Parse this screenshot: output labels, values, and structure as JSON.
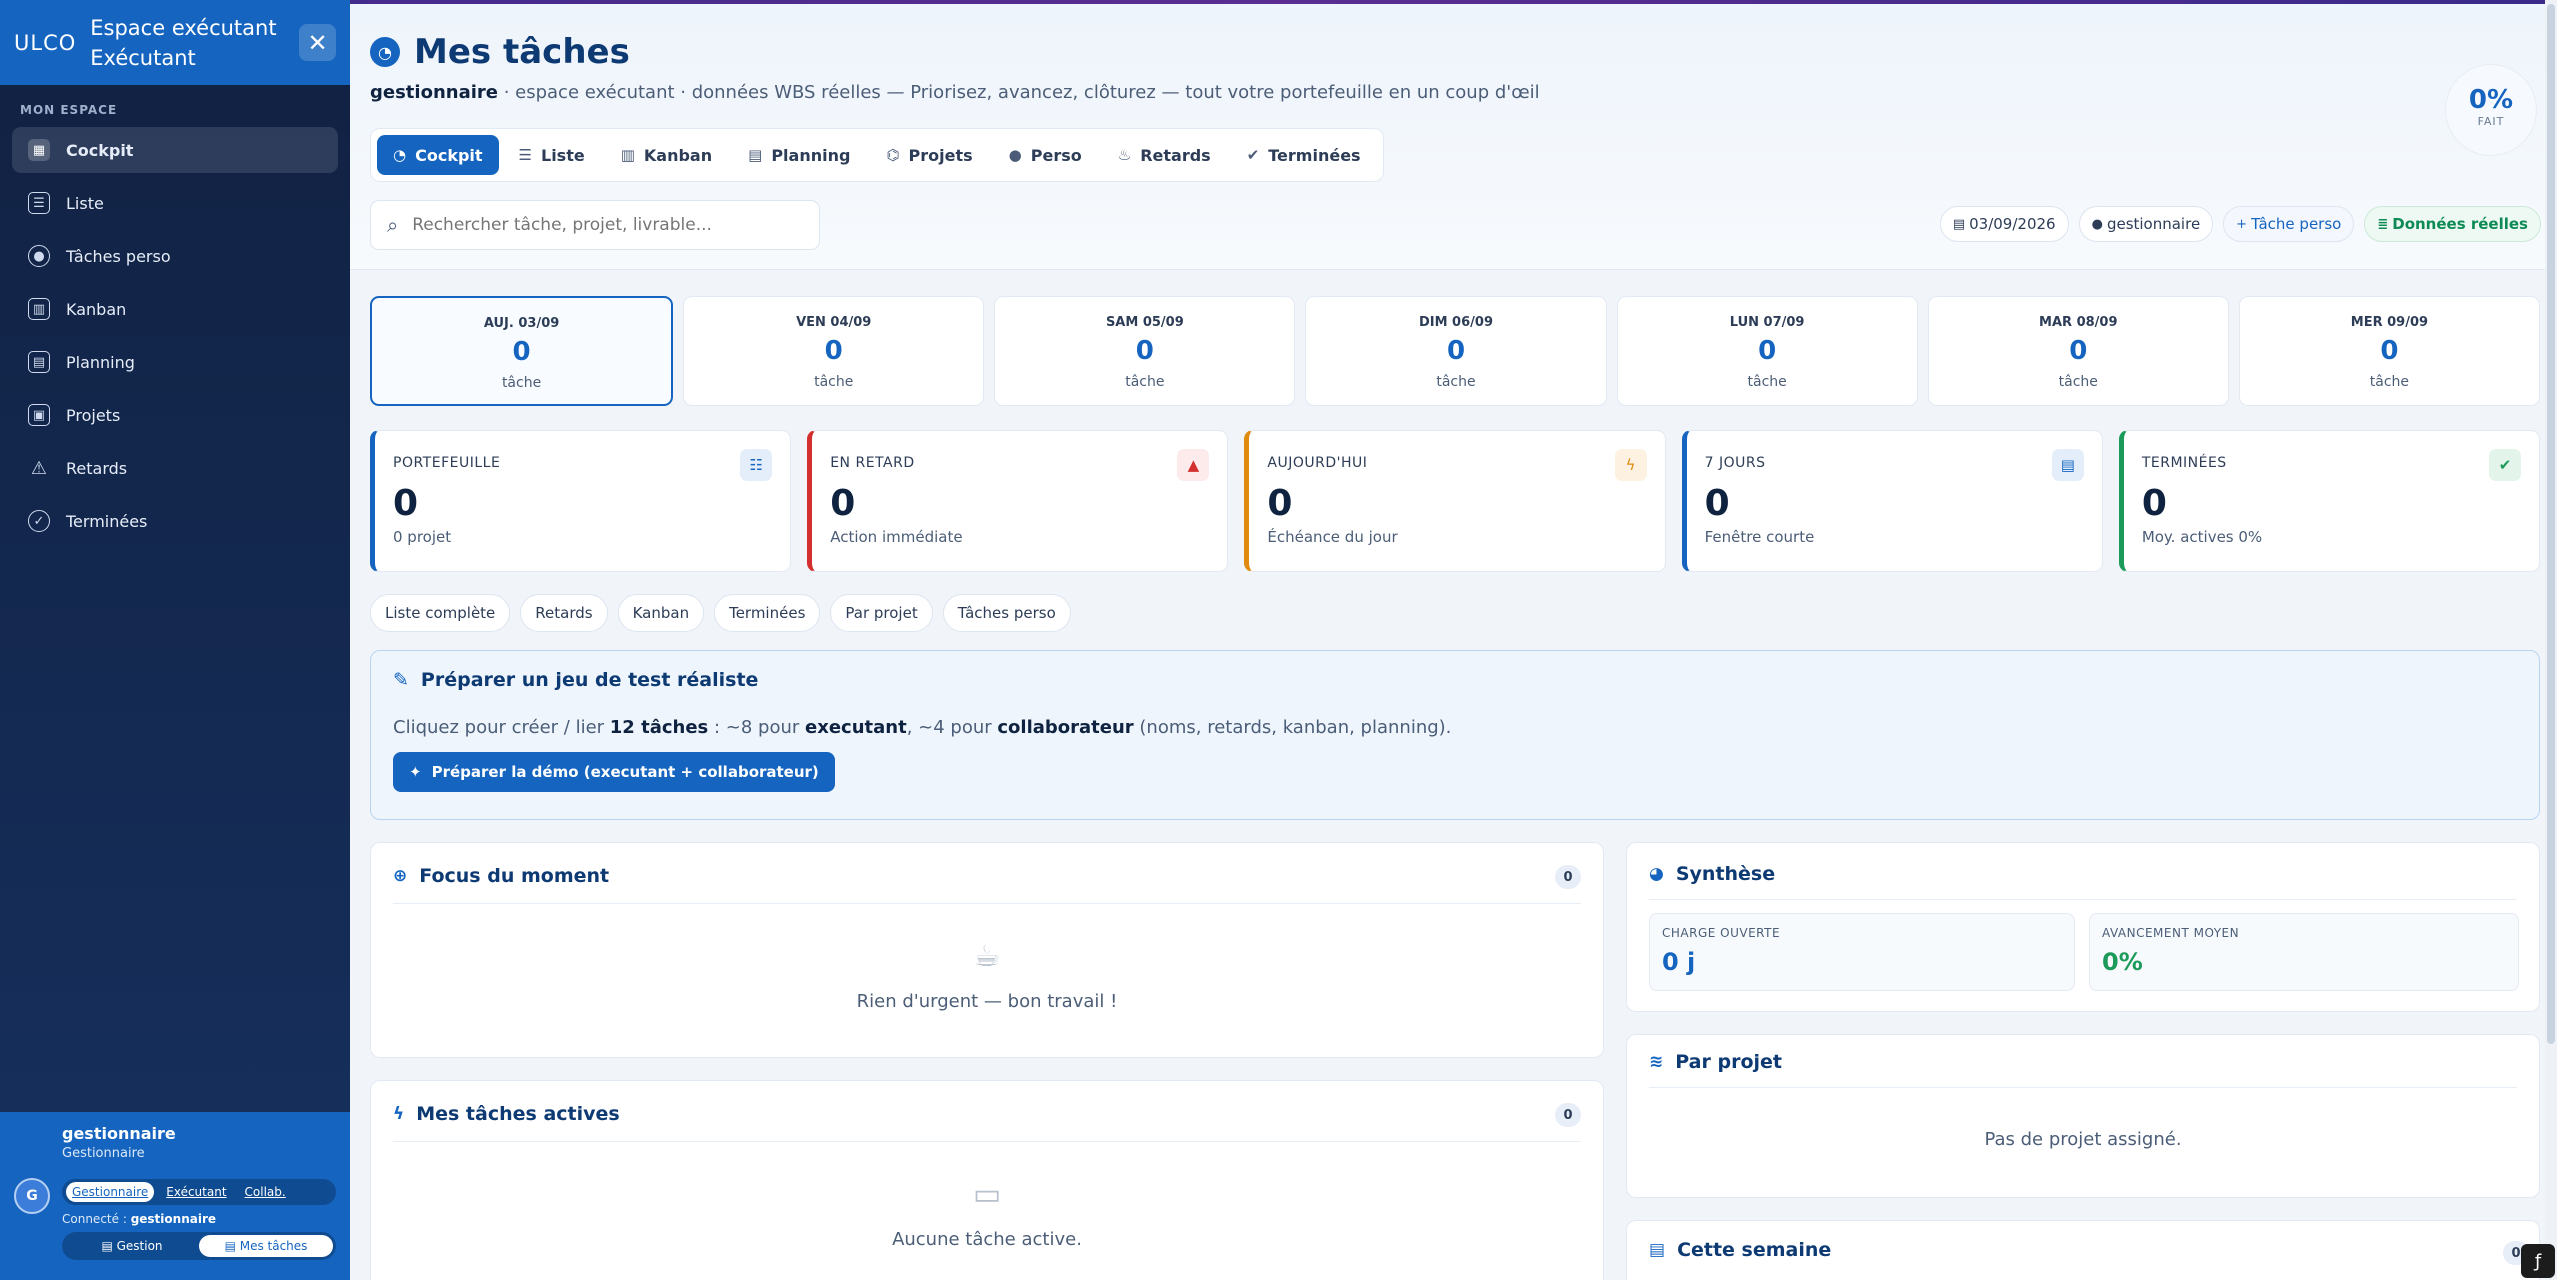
{
  "sidebar": {
    "logo": "ULCO",
    "title_line1": "Espace exécutant",
    "title_line2": "Exécutant",
    "section": "MON ESPACE",
    "items": [
      {
        "label": "Cockpit",
        "icon": "grid-icon"
      },
      {
        "label": "Liste",
        "icon": "list-icon"
      },
      {
        "label": "Tâches perso",
        "icon": "user-circle-icon"
      },
      {
        "label": "Kanban",
        "icon": "kanban-icon"
      },
      {
        "label": "Planning",
        "icon": "calendar-icon"
      },
      {
        "label": "Projets",
        "icon": "briefcase-icon"
      },
      {
        "label": "Retards",
        "icon": "warning-icon"
      },
      {
        "label": "Terminées",
        "icon": "check-circle-icon"
      }
    ],
    "footer": {
      "user": "gestionnaire",
      "role": "Gestionnaire",
      "avatar": "G",
      "roles": [
        "Gestionnaire",
        "Exécutant",
        "Collab."
      ],
      "connected_label": "Connecté :",
      "connected_user": "gestionnaire",
      "switch": [
        "Gestion",
        "Mes tâches"
      ]
    }
  },
  "header": {
    "title": "Mes tâches",
    "subtitle_bold": "gestionnaire",
    "subtitle_rest": " · espace exécutant · données WBS réelles — Priorisez, avancez, clôturez — tout votre portefeuille en un coup d'œil",
    "pct_value": "0%",
    "pct_label": "FAIT",
    "tabs": [
      "Cockpit",
      "Liste",
      "Kanban",
      "Planning",
      "Projets",
      "Perso",
      "Retards",
      "Terminées"
    ],
    "search_placeholder": "Rechercher tâche, projet, livrable...",
    "chips": {
      "date": "03/09/2026",
      "user": "gestionnaire",
      "add": "Tâche perso",
      "data": "Données réelles"
    }
  },
  "days": [
    {
      "label": "AUJ. 03/09",
      "count": "0",
      "unit": "tâche"
    },
    {
      "label": "VEN 04/09",
      "count": "0",
      "unit": "tâche"
    },
    {
      "label": "SAM 05/09",
      "count": "0",
      "unit": "tâche"
    },
    {
      "label": "DIM 06/09",
      "count": "0",
      "unit": "tâche"
    },
    {
      "label": "LUN 07/09",
      "count": "0",
      "unit": "tâche"
    },
    {
      "label": "MAR 08/09",
      "count": "0",
      "unit": "tâche"
    },
    {
      "label": "MER 09/09",
      "count": "0",
      "unit": "tâche"
    }
  ],
  "kpis": [
    {
      "label": "PORTEFEUILLE",
      "value": "0",
      "sub": "0 projet",
      "color": "#1565c0",
      "icon": "list-check-icon"
    },
    {
      "label": "EN RETARD",
      "value": "0",
      "sub": "Action immédiate",
      "color": "#d32f2f",
      "icon": "warning-icon"
    },
    {
      "label": "AUJOURD'HUI",
      "value": "0",
      "sub": "Échéance du jour",
      "color": "#e08a10",
      "icon": "bolt-icon"
    },
    {
      "label": "7 JOURS",
      "value": "0",
      "sub": "Fenêtre courte",
      "color": "#1565c0",
      "icon": "calendar-icon"
    },
    {
      "label": "TERMINÉES",
      "value": "0",
      "sub": "Moy. actives 0%",
      "color": "#1b9a5a",
      "icon": "check-circle-icon"
    }
  ],
  "quick_links": [
    "Liste complète",
    "Retards",
    "Kanban",
    "Terminées",
    "Par projet",
    "Tâches perso"
  ],
  "demo": {
    "title": "Préparer un jeu de test réaliste",
    "t1": "Cliquez pour créer / lier ",
    "t2": "12 tâches",
    "t3": " : ~8 pour ",
    "t4": "executant",
    "t5": ", ~4 pour ",
    "t6": "collaborateur",
    "t7": " (noms, retards, kanban, planning).",
    "button": "Préparer la démo (executant + collaborateur)"
  },
  "focus": {
    "title": "Focus du moment",
    "count": "0",
    "empty": "Rien d'urgent — bon travail !"
  },
  "active": {
    "title": "Mes tâches actives",
    "count": "0",
    "empty": "Aucune tâche active."
  },
  "synthese": {
    "title": "Synthèse",
    "charge_label": "CHARGE OUVERTE",
    "charge_value": "0 j",
    "avancement_label": "AVANCEMENT MOYEN",
    "avancement_value": "0%"
  },
  "par_projet": {
    "title": "Par projet",
    "empty": "Pas de projet assigné."
  },
  "semaine": {
    "title": "Cette semaine",
    "count": "0"
  }
}
